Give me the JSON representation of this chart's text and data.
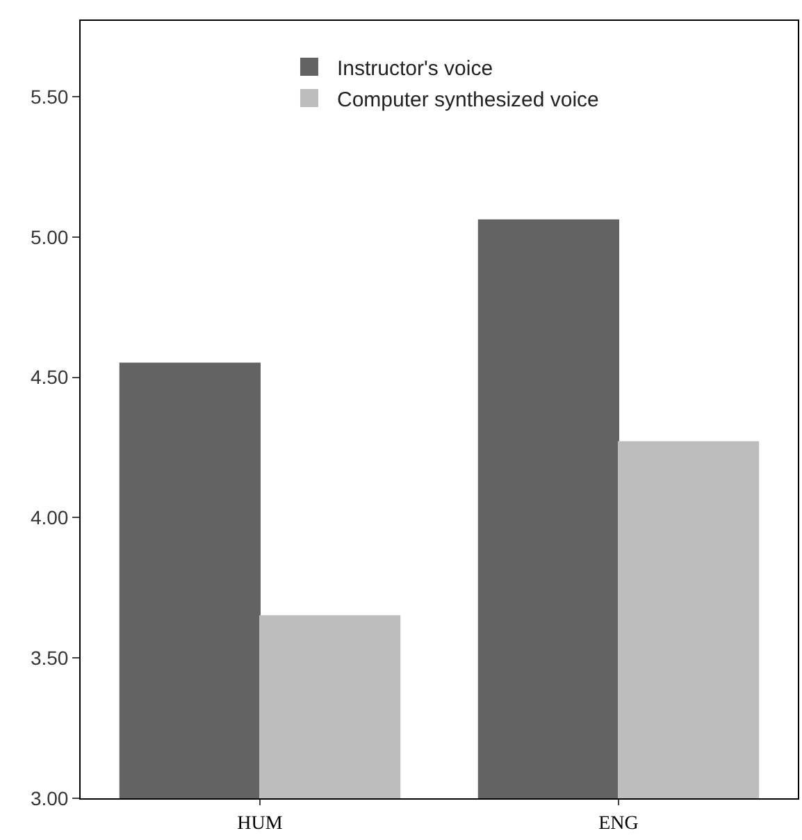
{
  "chart_data": {
    "type": "bar",
    "categories": [
      "HUM",
      "ENG"
    ],
    "series": [
      {
        "name": "Instructor's voice",
        "color": "#636363",
        "values": [
          4.55,
          5.06
        ]
      },
      {
        "name": "Computer synthesized voice",
        "color": "#bdbdbd",
        "values": [
          3.65,
          4.27
        ]
      }
    ],
    "ylim": [
      3,
      5.77
    ],
    "yticks": [
      {
        "value": 3,
        "label": "3.00"
      },
      {
        "value": 3.5,
        "label": "3.50"
      },
      {
        "value": 4,
        "label": "4.00"
      },
      {
        "value": 4.5,
        "label": "4.50"
      },
      {
        "value": 5,
        "label": "5.00"
      },
      {
        "value": 5.5,
        "label": "5.50"
      }
    ],
    "grid": false,
    "legend": "top"
  }
}
